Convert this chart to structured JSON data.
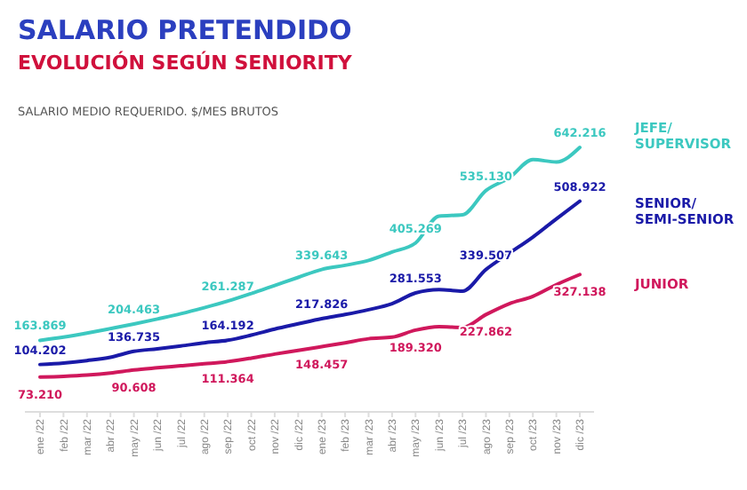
{
  "chart_data": {
    "type": "line",
    "title": "SALARIO PRETENDIDO",
    "subtitle": "EVOLUCIÓN SEGÚN SENIORITY",
    "annotations": [
      "SALARIO MEDIO REQUERIDO. $/MES BRUTOS"
    ],
    "categories": [
      "ene /22",
      "feb /22",
      "mar /22",
      "abr /22",
      "may /22",
      "jun /22",
      "jul /22",
      "ago /22",
      "sep /22",
      "oct /22",
      "nov /22",
      "dic /22",
      "ene /23",
      "feb /23",
      "mar /23",
      "abr /23",
      "may /23",
      "jun /23",
      "jul /23",
      "ago /23",
      "sep /23",
      "oct /23",
      "nov /23",
      "dic /23"
    ],
    "series": [
      {
        "name": "JEFE/SUPERVISOR",
        "color": "#3cc8c0",
        "values": [
          163869,
          172000,
          182000,
          193000,
          204463,
          217000,
          230000,
          245000,
          261287,
          280000,
          300000,
          320000,
          339643,
          350000,
          362000,
          383000,
          405269,
          472000,
          475000,
          535130,
          567000,
          612000,
          606000,
          642216
        ],
        "value_labels": [
          "163.869",
          null,
          null,
          null,
          "204.463",
          null,
          null,
          null,
          "261.287",
          null,
          null,
          null,
          "339.643",
          null,
          null,
          null,
          "405.269",
          null,
          null,
          "535.130",
          null,
          null,
          null,
          "642.216"
        ]
      },
      {
        "name": "SENIOR/SEMI-SENIOR",
        "color": "#1a1aa8",
        "values": [
          104202,
          108000,
          114000,
          122000,
          136735,
          143000,
          150000,
          158000,
          164192,
          177000,
          192000,
          205000,
          217826,
          228000,
          240000,
          255000,
          281553,
          290000,
          286000,
          339507,
          380000,
          420000,
          465000,
          508922
        ],
        "value_labels": [
          "104.202",
          null,
          null,
          null,
          "136.735",
          null,
          null,
          null,
          "164.192",
          null,
          null,
          null,
          "217.826",
          null,
          null,
          null,
          "281.553",
          null,
          null,
          "339.507",
          null,
          null,
          null,
          "508.922"
        ]
      },
      {
        "name": "JUNIOR",
        "color": "#d0185c",
        "values": [
          73210,
          75000,
          78000,
          83000,
          90608,
          96000,
          101000,
          106000,
          111364,
          120000,
          130000,
          139000,
          148457,
          158000,
          168000,
          172000,
          189320,
          198000,
          196000,
          227862,
          255000,
          273000,
          302000,
          327138
        ],
        "value_labels": [
          "73.210",
          null,
          null,
          null,
          "90.608",
          null,
          null,
          null,
          "111.364",
          null,
          null,
          null,
          "148.457",
          null,
          null,
          null,
          "189.320",
          null,
          null,
          "227.862",
          null,
          null,
          null,
          "327.138"
        ]
      }
    ],
    "relative": false,
    "legend": "right",
    "grid": false,
    "marker": "none",
    "line_style": "solid"
  }
}
